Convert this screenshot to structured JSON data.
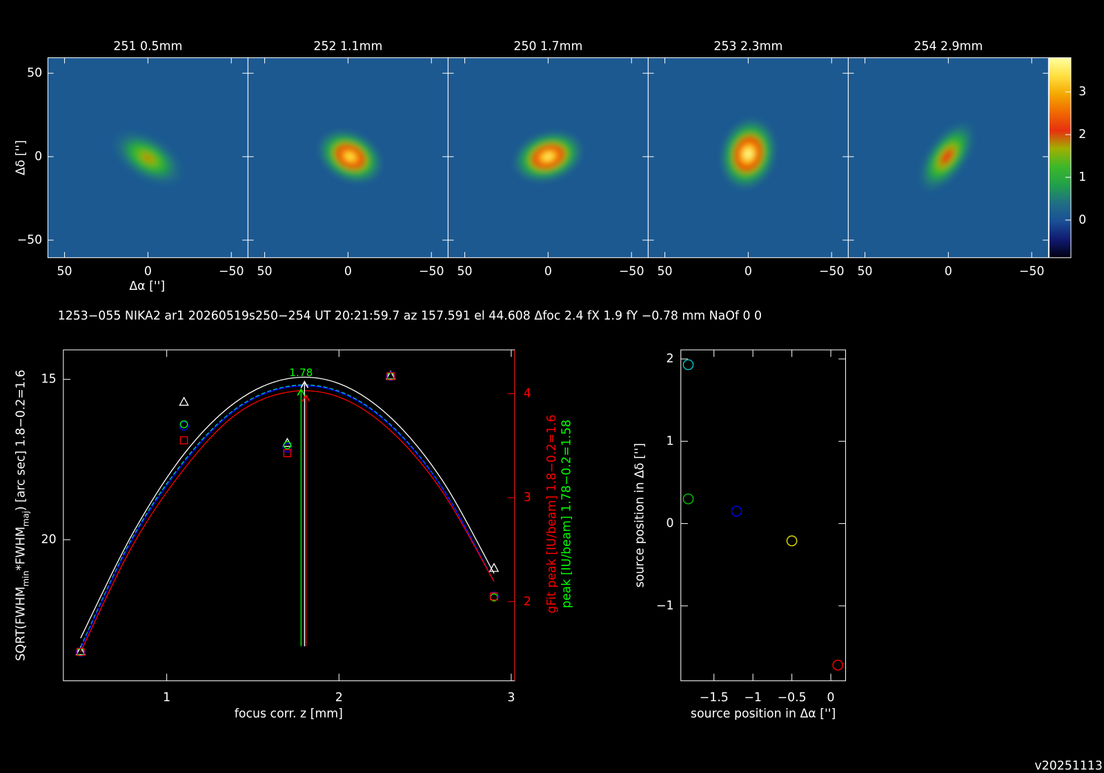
{
  "header": {
    "info": "1253−055 NIKA2 ar1 20260519s250−254 UT 20:21:59.7 az 157.591 el 44.608 Δfoc 2.4 fX 1.9 fY −0.78 mm NaOf 0 0",
    "version": "v20251113"
  },
  "chart_data": [
    {
      "type": "image",
      "titles": [
        "251  0.5mm",
        "252  1.1mm",
        "250  1.7mm",
        "253  2.3mm",
        "254  2.9mm"
      ],
      "xlabel": "Δα ['']",
      "ylabel": "Δδ ['']",
      "xlim": [
        60,
        -60
      ],
      "ylim": [
        -60.5,
        59.3
      ],
      "xticks": [
        50,
        0,
        {
          "value": -50,
          "label": "−50"
        }
      ],
      "yticks": [
        {
          "value": -50,
          "label": "−50"
        },
        0,
        50
      ],
      "peaks": [
        1.8,
        3.4,
        3.5,
        3.7,
        2.2
      ],
      "background": 0.1,
      "colorbar": {
        "clim": [
          -0.88,
          3.8
        ],
        "ticks": [
          0,
          1,
          2,
          3
        ],
        "colormap": [
          "#000010",
          "#101a70",
          "#1a4f96",
          "#206f84",
          "#21a04a",
          "#3cb82a",
          "#a0b000",
          "#e83010",
          "#f06a00",
          "#f5a800",
          "#ffe040",
          "#ffffa0"
        ]
      }
    },
    {
      "type": "line",
      "x": [
        0.5,
        1.1,
        1.7,
        2.3,
        2.9
      ],
      "xlim": [
        0.4,
        3.02
      ],
      "xticks": [
        1,
        2,
        3
      ],
      "ylim": [
        24.4,
        14.08
      ],
      "yticks": [
        15,
        20
      ],
      "y2lim": [
        1.24,
        4.42
      ],
      "y2ticks": [
        2,
        3,
        4
      ],
      "xlabel": "focus corr. z [mm]",
      "ylabel": [
        "SQRT(FWHM",
        "min",
        "*FWHM",
        "maj",
        ") [arc sec] 1.8−0.2=1.6"
      ],
      "y2label": "gFit peak [IU/beam] 1.8−0.2=1.6",
      "y2label2": "peak [IU/beam] 1.78−0.2=1.58",
      "series": [
        {
          "marker": "triangle",
          "color": "#ffffff",
          "values": [
            23.5,
            15.72,
            17.0,
            14.9,
            20.9
          ]
        },
        {
          "marker": "circle",
          "color": "#0000ff",
          "values": [
            23.5,
            16.45,
            17.13,
            14.9,
            21.77
          ]
        },
        {
          "marker": "circle",
          "color": "#00ff00",
          "values": [
            23.5,
            16.4,
            17.05,
            14.9,
            21.8
          ]
        },
        {
          "marker": "square",
          "color": "#ff0000",
          "values": [
            23.5,
            16.9,
            17.3,
            14.9,
            21.77
          ]
        }
      ],
      "fit_x": [
        0.5,
        0.8,
        1.1,
        1.4,
        1.7,
        2.0,
        2.3,
        2.6,
        2.9
      ],
      "fits": [
        {
          "color": "#ffffff",
          "values": [
            23.07,
            19.83,
            17.33,
            15.71,
            14.98,
            15.13,
            16.19,
            18.15,
            21.05
          ]
        },
        {
          "color": "#00c8c8",
          "values": [
            23.35,
            19.95,
            17.55,
            15.92,
            15.22,
            15.37,
            16.42,
            18.38,
            21.3
          ]
        },
        {
          "color": "#0000ff",
          "values": [
            23.4,
            20.0,
            17.6,
            15.95,
            15.25,
            15.4,
            16.45,
            18.4,
            21.3
          ]
        },
        {
          "color": "#ff0000",
          "values": [
            23.5,
            20.2,
            17.8,
            16.1,
            15.4,
            15.55,
            16.6,
            18.5,
            21.3
          ]
        }
      ],
      "focus_lines": [
        {
          "color": "#ffffff",
          "x": 1.8
        },
        {
          "color": "#00ff00",
          "x": 1.78
        },
        {
          "color": "#ff0000",
          "x": 1.8
        }
      ]
    },
    {
      "type": "scatter",
      "x": [
        -1.83,
        -1.83,
        -1.21,
        -0.5,
        0.09
      ],
      "values": [
        1.93,
        0.3,
        0.15,
        -0.21,
        -1.72
      ],
      "colors": [
        "#00c8c8",
        "#00c800",
        "#0000ff",
        "#e0e000",
        "#ff0000"
      ],
      "xlim": [
        -1.925,
        0.19
      ],
      "ylim": [
        -1.91,
        2.11
      ],
      "xticks": [
        {
          "value": -1.5,
          "label": "−1.5"
        },
        {
          "value": -1,
          "label": "−1"
        },
        {
          "value": -0.5,
          "label": "−0.5"
        },
        0
      ],
      "yticks": [
        {
          "value": -1,
          "label": "−1"
        },
        0,
        1,
        2
      ],
      "xlabel": "source position in Δα ['']",
      "ylabel": "source position in Δδ ['']"
    }
  ]
}
